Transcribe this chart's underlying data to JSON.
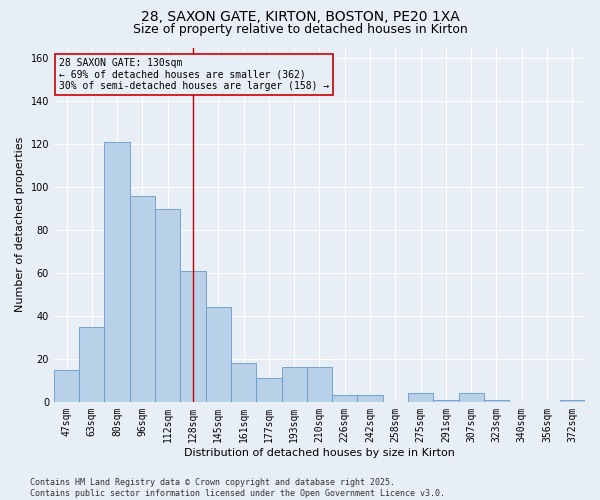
{
  "title": "28, SAXON GATE, KIRTON, BOSTON, PE20 1XA",
  "subtitle": "Size of property relative to detached houses in Kirton",
  "xlabel": "Distribution of detached houses by size in Kirton",
  "ylabel": "Number of detached properties",
  "categories": [
    "47sqm",
    "63sqm",
    "80sqm",
    "96sqm",
    "112sqm",
    "128sqm",
    "145sqm",
    "161sqm",
    "177sqm",
    "193sqm",
    "210sqm",
    "226sqm",
    "242sqm",
    "258sqm",
    "275sqm",
    "291sqm",
    "307sqm",
    "323sqm",
    "340sqm",
    "356sqm",
    "372sqm"
  ],
  "values": [
    15,
    35,
    121,
    96,
    90,
    61,
    44,
    18,
    11,
    16,
    16,
    3,
    3,
    0,
    4,
    1,
    4,
    1,
    0,
    0,
    1
  ],
  "bar_color": "#b8d0e8",
  "bar_edge_color": "#6699cc",
  "background_color": "#e8eef5",
  "grid_color": "#ffffff",
  "annotation_text": "28 SAXON GATE: 130sqm\n← 69% of detached houses are smaller (362)\n30% of semi-detached houses are larger (158) →",
  "annotation_box_color": "#cc0000",
  "vline_color": "#cc0000",
  "vline_index": 5,
  "ylim": [
    0,
    165
  ],
  "yticks": [
    0,
    20,
    40,
    60,
    80,
    100,
    120,
    140,
    160
  ],
  "footer": "Contains HM Land Registry data © Crown copyright and database right 2025.\nContains public sector information licensed under the Open Government Licence v3.0.",
  "title_fontsize": 10,
  "subtitle_fontsize": 9,
  "xlabel_fontsize": 8,
  "ylabel_fontsize": 8,
  "tick_fontsize": 7,
  "annotation_fontsize": 7,
  "footer_fontsize": 6
}
